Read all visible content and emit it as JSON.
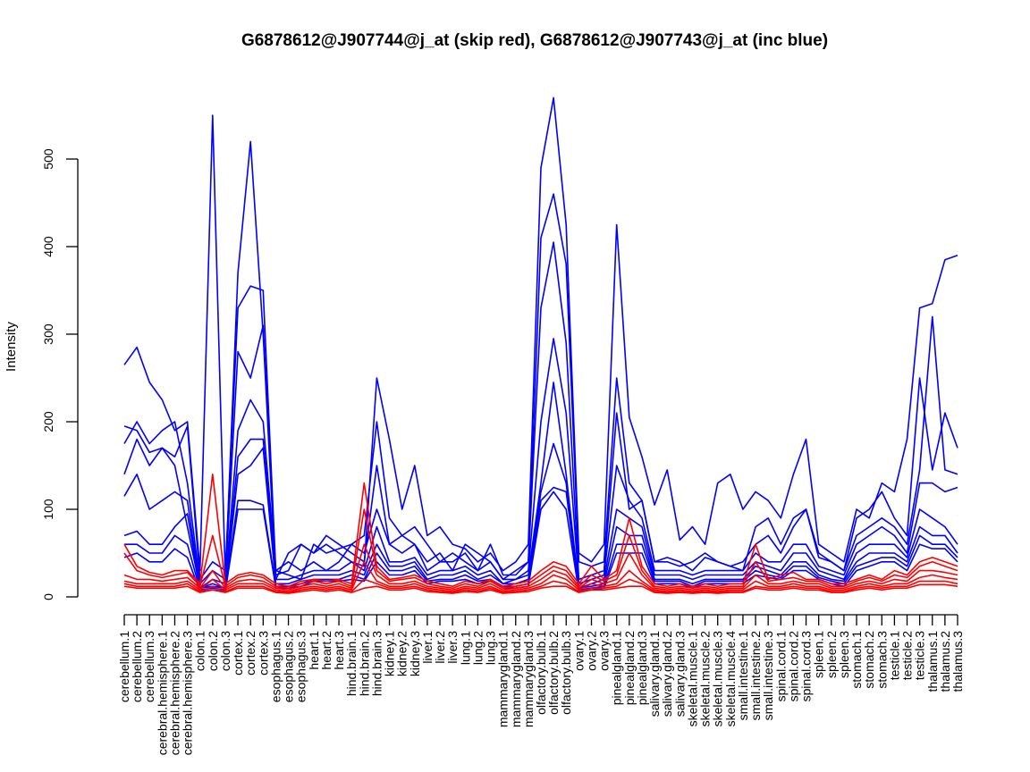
{
  "chart_data": {
    "type": "line",
    "title": "G6878612@J907744@j_at (skip red), G6878612@J907743@j_at (inc blue)",
    "xlabel": "",
    "ylabel": "Intensity",
    "ylim": [
      0,
      500
    ],
    "yticks": [
      0,
      100,
      200,
      300,
      400,
      500
    ],
    "grid": false,
    "legend": "none",
    "colors": {
      "skip": "#ff0000",
      "inc": "#0000ff",
      "axis": "#000000"
    },
    "categories": [
      "cerebellum.1",
      "cerebellum.2",
      "cerebellum.3",
      "cerebral.hemisphere.1",
      "cerebral.hemisphere.2",
      "cerebral.hemisphere.3",
      "colon.1",
      "colon.2",
      "colon.3",
      "cortex.1",
      "cortex.2",
      "cortex.3",
      "esophagus.1",
      "esophagus.2",
      "esophagus.3",
      "heart.1",
      "heart.2",
      "heart.3",
      "hind.brain.1",
      "hind.brain.2",
      "hind.brain.3",
      "kidney.1",
      "kidney.2",
      "kidney.3",
      "liver.1",
      "liver.2",
      "liver.3",
      "lung.1",
      "lung.2",
      "lung.3",
      "mammarygland.1",
      "mammarygland.2",
      "mammarygland.3",
      "olfactory.bulb.1",
      "olfactory.bulb.2",
      "olfactory.bulb.3",
      "ovary.1",
      "ovary.2",
      "ovary.3",
      "pinealgland.1",
      "pinealgland.2",
      "pinealgland.3",
      "salivary.gland.1",
      "salivary.gland.2",
      "salivary.gland.3",
      "skeletal.muscle.1",
      "skeletal.muscle.2",
      "skeletal.muscle.3",
      "skeletal.muscle.4",
      "small.intestine.1",
      "small.intestine.2",
      "small.intestine.3",
      "spinal.cord.1",
      "spinal.cord.2",
      "spinal.cord.3",
      "spleen.1",
      "spleen.2",
      "spleen.3",
      "stomach.1",
      "stomach.2",
      "stomach.3",
      "testicle.1",
      "testicle.2",
      "testicle.3",
      "thalamus.1",
      "thalamus.2",
      "thalamus.3"
    ],
    "series": [
      {
        "group": "inc",
        "values": [
          265,
          285,
          245,
          225,
          190,
          200,
          30,
          550,
          20,
          370,
          520,
          300,
          20,
          50,
          60,
          50,
          60,
          50,
          40,
          35,
          250,
          180,
          100,
          150,
          70,
          80,
          60,
          55,
          40,
          50,
          30,
          40,
          60,
          490,
          570,
          425,
          50,
          40,
          60,
          425,
          205,
          160,
          105,
          145,
          65,
          80,
          60,
          130,
          140,
          100,
          120,
          110,
          90,
          140,
          180,
          60,
          50,
          40,
          100,
          90,
          130,
          120,
          180,
          330,
          335,
          385,
          390
        ]
      },
      {
        "group": "inc",
        "values": [
          195,
          190,
          165,
          170,
          160,
          195,
          20,
          40,
          30,
          330,
          355,
          350,
          30,
          25,
          20,
          60,
          50,
          55,
          60,
          70,
          200,
          90,
          70,
          60,
          40,
          50,
          30,
          60,
          50,
          40,
          20,
          30,
          40,
          410,
          460,
          380,
          40,
          35,
          40,
          250,
          130,
          110,
          40,
          40,
          35,
          40,
          50,
          40,
          35,
          30,
          80,
          90,
          60,
          90,
          100,
          50,
          40,
          30,
          90,
          100,
          120,
          90,
          70,
          250,
          145,
          210,
          170
        ]
      },
      {
        "group": "inc",
        "values": [
          175,
          200,
          175,
          190,
          200,
          130,
          15,
          30,
          20,
          280,
          250,
          310,
          25,
          30,
          60,
          50,
          70,
          60,
          50,
          40,
          150,
          60,
          70,
          80,
          60,
          40,
          50,
          40,
          30,
          60,
          25,
          25,
          40,
          330,
          405,
          290,
          20,
          25,
          30,
          210,
          100,
          110,
          40,
          45,
          40,
          30,
          45,
          40,
          35,
          40,
          60,
          70,
          50,
          80,
          100,
          45,
          40,
          30,
          70,
          80,
          90,
          80,
          60,
          145,
          320,
          145,
          140
        ]
      },
      {
        "group": "inc",
        "values": [
          140,
          180,
          150,
          170,
          150,
          80,
          10,
          20,
          15,
          190,
          225,
          200,
          30,
          40,
          30,
          40,
          30,
          40,
          60,
          50,
          100,
          60,
          50,
          60,
          30,
          40,
          40,
          50,
          30,
          40,
          20,
          20,
          30,
          200,
          295,
          210,
          15,
          20,
          25,
          150,
          110,
          90,
          30,
          30,
          30,
          25,
          30,
          30,
          30,
          30,
          50,
          40,
          40,
          60,
          60,
          35,
          30,
          25,
          60,
          70,
          80,
          70,
          50,
          130,
          130,
          120,
          125
        ]
      },
      {
        "group": "inc",
        "values": [
          115,
          140,
          100,
          110,
          120,
          110,
          10,
          15,
          10,
          160,
          180,
          180,
          20,
          20,
          25,
          30,
          30,
          30,
          40,
          30,
          80,
          40,
          40,
          45,
          25,
          30,
          30,
          35,
          25,
          30,
          15,
          20,
          25,
          130,
          245,
          140,
          10,
          15,
          20,
          100,
          90,
          80,
          25,
          25,
          25,
          20,
          25,
          25,
          25,
          25,
          40,
          35,
          30,
          50,
          50,
          30,
          25,
          20,
          50,
          60,
          60,
          60,
          45,
          100,
          90,
          80,
          60
        ]
      },
      {
        "group": "inc",
        "values": [
          70,
          75,
          60,
          60,
          80,
          95,
          10,
          12,
          10,
          140,
          150,
          170,
          15,
          15,
          20,
          25,
          25,
          25,
          30,
          25,
          60,
          35,
          35,
          40,
          20,
          25,
          25,
          30,
          20,
          25,
          15,
          15,
          20,
          120,
          175,
          130,
          10,
          12,
          15,
          80,
          70,
          70,
          20,
          20,
          20,
          15,
          20,
          20,
          20,
          20,
          35,
          30,
          25,
          40,
          40,
          25,
          20,
          18,
          40,
          50,
          50,
          50,
          40,
          80,
          70,
          70,
          50
        ]
      },
      {
        "group": "inc",
        "values": [
          60,
          60,
          50,
          50,
          70,
          60,
          8,
          10,
          8,
          110,
          110,
          105,
          12,
          12,
          15,
          20,
          20,
          20,
          25,
          20,
          50,
          30,
          30,
          35,
          18,
          20,
          20,
          25,
          18,
          20,
          12,
          12,
          15,
          110,
          125,
          120,
          8,
          10,
          12,
          60,
          60,
          60,
          18,
          18,
          18,
          12,
          18,
          18,
          18,
          18,
          30,
          25,
          22,
          35,
          35,
          22,
          18,
          15,
          35,
          40,
          45,
          45,
          35,
          70,
          60,
          60,
          45
        ]
      },
      {
        "group": "inc",
        "values": [
          45,
          50,
          40,
          40,
          55,
          45,
          6,
          8,
          6,
          100,
          100,
          100,
          10,
          10,
          12,
          18,
          18,
          18,
          20,
          18,
          40,
          25,
          25,
          30,
          15,
          18,
          18,
          20,
          15,
          18,
          10,
          10,
          12,
          100,
          120,
          100,
          6,
          8,
          10,
          50,
          50,
          50,
          15,
          15,
          15,
          10,
          15,
          15,
          15,
          15,
          25,
          22,
          20,
          30,
          30,
          20,
          15,
          12,
          30,
          35,
          40,
          40,
          30,
          60,
          55,
          55,
          40
        ]
      },
      {
        "group": "skip",
        "values": [
          60,
          35,
          28,
          25,
          30,
          30,
          15,
          140,
          15,
          25,
          28,
          25,
          15,
          12,
          18,
          20,
          18,
          20,
          15,
          130,
          35,
          20,
          22,
          25,
          18,
          15,
          12,
          18,
          15,
          20,
          12,
          15,
          18,
          30,
          40,
          35,
          15,
          35,
          20,
          30,
          90,
          35,
          15,
          12,
          15,
          12,
          15,
          12,
          15,
          15,
          60,
          20,
          25,
          28,
          20,
          20,
          15,
          15,
          20,
          25,
          20,
          30,
          25,
          40,
          45,
          40,
          35
        ]
      },
      {
        "group": "skip",
        "values": [
          50,
          30,
          25,
          22,
          25,
          28,
          12,
          70,
          12,
          22,
          25,
          22,
          12,
          10,
          15,
          18,
          15,
          18,
          12,
          100,
          30,
          18,
          20,
          22,
          15,
          12,
          10,
          15,
          12,
          18,
          10,
          12,
          15,
          25,
          35,
          30,
          12,
          25,
          18,
          25,
          70,
          30,
          12,
          10,
          12,
          10,
          12,
          10,
          12,
          12,
          40,
          18,
          20,
          22,
          18,
          18,
          12,
          12,
          18,
          22,
          18,
          25,
          22,
          35,
          40,
          35,
          30
        ]
      },
      {
        "group": "skip",
        "values": [
          25,
          20,
          20,
          18,
          20,
          22,
          10,
          30,
          10,
          18,
          20,
          18,
          10,
          8,
          12,
          15,
          12,
          15,
          10,
          60,
          25,
          15,
          15,
          18,
          12,
          10,
          8,
          12,
          10,
          15,
          8,
          10,
          12,
          20,
          30,
          25,
          10,
          20,
          15,
          20,
          50,
          25,
          10,
          8,
          10,
          8,
          10,
          8,
          10,
          10,
          25,
          15,
          15,
          18,
          15,
          15,
          10,
          10,
          15,
          18,
          15,
          20,
          18,
          30,
          30,
          28,
          25
        ]
      },
      {
        "group": "skip",
        "values": [
          18,
          15,
          15,
          15,
          15,
          18,
          8,
          20,
          8,
          15,
          15,
          15,
          8,
          6,
          10,
          12,
          10,
          12,
          8,
          40,
          18,
          12,
          12,
          15,
          10,
          8,
          6,
          10,
          8,
          12,
          6,
          8,
          10,
          15,
          25,
          20,
          8,
          15,
          12,
          15,
          30,
          18,
          8,
          6,
          8,
          6,
          8,
          6,
          8,
          8,
          18,
          12,
          12,
          15,
          12,
          12,
          8,
          8,
          12,
          15,
          12,
          15,
          15,
          22,
          25,
          22,
          20
        ]
      },
      {
        "group": "skip",
        "values": [
          15,
          12,
          12,
          12,
          12,
          15,
          6,
          12,
          6,
          12,
          12,
          12,
          6,
          5,
          8,
          10,
          8,
          10,
          6,
          20,
          15,
          10,
          10,
          12,
          8,
          6,
          5,
          8,
          6,
          10,
          5,
          6,
          8,
          12,
          18,
          15,
          6,
          10,
          10,
          12,
          20,
          15,
          6,
          5,
          6,
          5,
          6,
          5,
          6,
          6,
          12,
          10,
          10,
          12,
          10,
          10,
          6,
          6,
          10,
          12,
          10,
          12,
          12,
          18,
          18,
          18,
          15
        ]
      },
      {
        "group": "skip",
        "values": [
          12,
          10,
          10,
          10,
          10,
          12,
          5,
          8,
          5,
          10,
          10,
          10,
          5,
          4,
          6,
          8,
          6,
          8,
          5,
          10,
          12,
          8,
          8,
          10,
          6,
          5,
          4,
          6,
          5,
          8,
          4,
          5,
          6,
          10,
          12,
          12,
          5,
          8,
          8,
          10,
          12,
          12,
          5,
          4,
          5,
          4,
          5,
          4,
          5,
          5,
          10,
          8,
          8,
          10,
          8,
          8,
          5,
          5,
          8,
          10,
          8,
          10,
          10,
          14,
          14,
          14,
          12
        ]
      }
    ]
  }
}
